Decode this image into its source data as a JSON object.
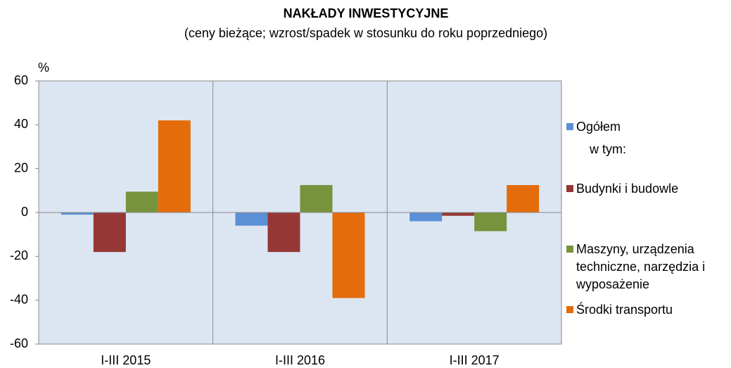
{
  "chart_data": {
    "type": "bar",
    "title": "NAKŁADY  INWESTYCYJNE",
    "subtitle": "(ceny bieżące; wzrost/spadek w stosunku do roku poprzedniego)",
    "y_label": "%",
    "legend_note": "w tym:",
    "categories": [
      "I-III 2015",
      "I-III 2016",
      "I-III 2017"
    ],
    "series": [
      {
        "name": "Ogółem",
        "color": "#5b8fd6",
        "values": [
          -1,
          -6,
          -4
        ]
      },
      {
        "name": "Budynki i budowle",
        "color": "#953735",
        "values": [
          -18,
          -18,
          -1.5
        ]
      },
      {
        "name": "Maszyny, urządzenia techniczne, narzędzia i wyposażenie",
        "color": "#77933c",
        "values": [
          9.5,
          12.5,
          -8.5
        ]
      },
      {
        "name": "Środki transportu",
        "color": "#e46c0a",
        "values": [
          42,
          -39,
          12.5
        ]
      }
    ],
    "ylim": [
      -60,
      60
    ],
    "yticks": [
      -60,
      -40,
      -20,
      0,
      20,
      40,
      60
    ],
    "legend": "right"
  }
}
